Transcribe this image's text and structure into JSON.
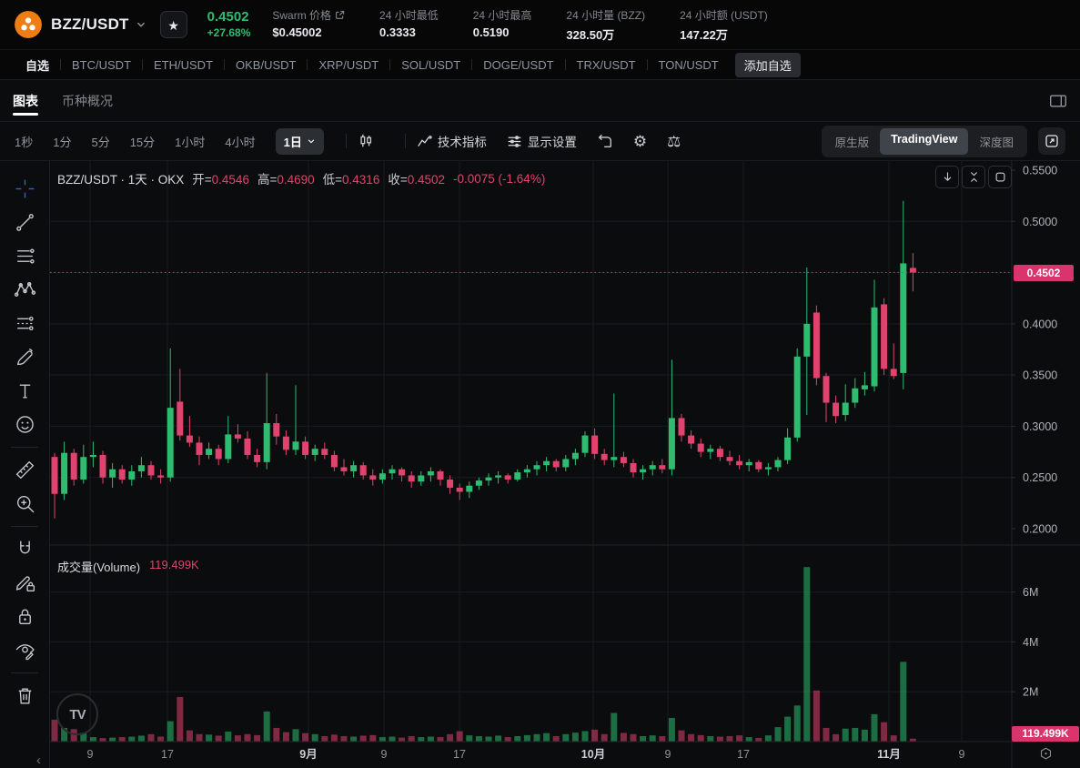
{
  "header": {
    "pair": "BZZ/USDT",
    "price": "0.4502",
    "change": "+27.68%",
    "stats": [
      {
        "label": "Swarm 价格",
        "value": "$0.45002",
        "link": true
      },
      {
        "label": "24 小时最低",
        "value": "0.3333",
        "link": false
      },
      {
        "label": "24 小时最高",
        "value": "0.5190",
        "link": false
      },
      {
        "label": "24 小时量 (BZZ)",
        "value": "328.50万",
        "link": false
      },
      {
        "label": "24 小时额 (USDT)",
        "value": "147.22万",
        "link": false
      }
    ]
  },
  "pairs_bar": {
    "watchlist_label": "自选",
    "items": [
      "BTC/USDT",
      "ETH/USDT",
      "OKB/USDT",
      "XRP/USDT",
      "SOL/USDT",
      "DOGE/USDT",
      "TRX/USDT",
      "TON/USDT"
    ],
    "add_label": "添加自选"
  },
  "view_tabs": [
    {
      "label": "图表",
      "active": true
    },
    {
      "label": "币种概况",
      "active": false
    }
  ],
  "toolbar": {
    "intervals": [
      "1秒",
      "1分",
      "5分",
      "15分",
      "1小时",
      "4小时"
    ],
    "selected_interval": "1日",
    "indicators_label": "技术指标",
    "display_label": "显示设置",
    "gear_glyph": "⚙",
    "scale_glyph": "⚖",
    "right_tabs": [
      "原生版",
      "TradingView",
      "深度图"
    ],
    "right_selected_index": 1
  },
  "left_toolbar": {
    "tools": [
      "crosshair",
      "trend-line",
      "fib-lines",
      "xabcd-pattern",
      "position-tool",
      "brush",
      "text",
      "emoji",
      "divider",
      "ruler",
      "zoom-in",
      "divider",
      "magnet",
      "drawing-mode-lock",
      "lock-all-drawings",
      "hide-drawings",
      "divider",
      "remove-drawings"
    ],
    "collapse_glyph": "‹"
  },
  "chart": {
    "legend": {
      "title": "BZZ/USDT · 1天 · OKX",
      "items": [
        {
          "k": "开=",
          "v": "0.4546"
        },
        {
          "k": "高=",
          "v": "0.4690"
        },
        {
          "k": "低=",
          "v": "0.4316"
        },
        {
          "k": "收=",
          "v": "0.4502"
        }
      ],
      "change": "-0.0075 (-1.64%)"
    },
    "volume_label": "成交量(Volume)",
    "volume_value": "119.499K",
    "price_badge": "0.4502",
    "volume_badge": "119.499K",
    "watermark": "TV"
  },
  "chart_data": {
    "type": "candlestick",
    "title": "BZZ/USDT 1天 OKX",
    "interval": "1日",
    "current_price": 0.4502,
    "last_ohlc": {
      "open": 0.4546,
      "high": 0.469,
      "low": 0.4316,
      "close": 0.4502,
      "change": "-0.0075 (-1.64%)"
    },
    "last_volume": "119.499K",
    "price_axis": {
      "min": 0.2,
      "max": 0.55,
      "ticks": [
        0.55,
        0.5,
        0.4,
        0.35,
        0.3,
        0.25,
        0.2
      ],
      "grid": [
        0.5,
        0.45,
        0.4,
        0.35,
        0.3,
        0.25
      ]
    },
    "volume_axis": {
      "unit": "M",
      "ticks": [
        [
          6,
          "6M"
        ],
        [
          4,
          "4M"
        ],
        [
          2,
          "2M"
        ]
      ]
    },
    "time_ticks": [
      [
        "9",
        99,
        0
      ],
      [
        "17",
        184,
        0
      ],
      [
        "9月",
        339,
        1
      ],
      [
        "9",
        422,
        0
      ],
      [
        "17",
        505,
        0
      ],
      [
        "10月",
        652,
        1
      ],
      [
        "9",
        734,
        0
      ],
      [
        "17",
        817,
        0
      ],
      [
        "11月",
        977,
        1
      ],
      [
        "9",
        1057,
        0
      ]
    ],
    "candles": [
      [
        0.27,
        0.274,
        0.21,
        0.234
      ],
      [
        0.234,
        0.285,
        0.228,
        0.274
      ],
      [
        0.274,
        0.278,
        0.242,
        0.248
      ],
      [
        0.248,
        0.282,
        0.244,
        0.27
      ],
      [
        0.27,
        0.285,
        0.26,
        0.272
      ],
      [
        0.272,
        0.276,
        0.244,
        0.25
      ],
      [
        0.25,
        0.264,
        0.24,
        0.258
      ],
      [
        0.258,
        0.262,
        0.244,
        0.248
      ],
      [
        0.248,
        0.262,
        0.242,
        0.256
      ],
      [
        0.256,
        0.27,
        0.25,
        0.262
      ],
      [
        0.262,
        0.266,
        0.248,
        0.252
      ],
      [
        0.252,
        0.258,
        0.244,
        0.25
      ],
      [
        0.25,
        0.376,
        0.246,
        0.318
      ],
      [
        0.324,
        0.356,
        0.286,
        0.291
      ],
      [
        0.291,
        0.31,
        0.28,
        0.284
      ],
      [
        0.284,
        0.29,
        0.262,
        0.272
      ],
      [
        0.272,
        0.284,
        0.268,
        0.278
      ],
      [
        0.278,
        0.282,
        0.262,
        0.268
      ],
      [
        0.268,
        0.31,
        0.264,
        0.292
      ],
      [
        0.292,
        0.302,
        0.284,
        0.288
      ],
      [
        0.288,
        0.295,
        0.268,
        0.272
      ],
      [
        0.272,
        0.278,
        0.26,
        0.265
      ],
      [
        0.265,
        0.352,
        0.258,
        0.303
      ],
      [
        0.303,
        0.312,
        0.282,
        0.29
      ],
      [
        0.29,
        0.296,
        0.272,
        0.277
      ],
      [
        0.277,
        0.34,
        0.272,
        0.285
      ],
      [
        0.285,
        0.29,
        0.268,
        0.272
      ],
      [
        0.272,
        0.282,
        0.266,
        0.278
      ],
      [
        0.278,
        0.284,
        0.268,
        0.272
      ],
      [
        0.272,
        0.276,
        0.256,
        0.26
      ],
      [
        0.26,
        0.268,
        0.252,
        0.256
      ],
      [
        0.256,
        0.266,
        0.25,
        0.262
      ],
      [
        0.262,
        0.265,
        0.248,
        0.252
      ],
      [
        0.252,
        0.258,
        0.242,
        0.248
      ],
      [
        0.248,
        0.258,
        0.244,
        0.254
      ],
      [
        0.254,
        0.262,
        0.248,
        0.258
      ],
      [
        0.258,
        0.26,
        0.246,
        0.252
      ],
      [
        0.252,
        0.256,
        0.24,
        0.246
      ],
      [
        0.246,
        0.256,
        0.242,
        0.252
      ],
      [
        0.252,
        0.26,
        0.246,
        0.256
      ],
      [
        0.256,
        0.258,
        0.242,
        0.248
      ],
      [
        0.248,
        0.252,
        0.234,
        0.24
      ],
      [
        0.24,
        0.244,
        0.228,
        0.236
      ],
      [
        0.236,
        0.246,
        0.23,
        0.242
      ],
      [
        0.242,
        0.25,
        0.238,
        0.247
      ],
      [
        0.247,
        0.254,
        0.242,
        0.25
      ],
      [
        0.25,
        0.256,
        0.244,
        0.252
      ],
      [
        0.252,
        0.254,
        0.244,
        0.248
      ],
      [
        0.248,
        0.258,
        0.246,
        0.255
      ],
      [
        0.255,
        0.262,
        0.25,
        0.258
      ],
      [
        0.258,
        0.266,
        0.252,
        0.262
      ],
      [
        0.262,
        0.27,
        0.256,
        0.266
      ],
      [
        0.266,
        0.268,
        0.256,
        0.26
      ],
      [
        0.26,
        0.272,
        0.256,
        0.268
      ],
      [
        0.268,
        0.278,
        0.262,
        0.274
      ],
      [
        0.274,
        0.295,
        0.27,
        0.291
      ],
      [
        0.291,
        0.298,
        0.268,
        0.273
      ],
      [
        0.273,
        0.278,
        0.262,
        0.267
      ],
      [
        0.267,
        0.332,
        0.26,
        0.27
      ],
      [
        0.27,
        0.275,
        0.26,
        0.264
      ],
      [
        0.264,
        0.268,
        0.25,
        0.255
      ],
      [
        0.255,
        0.262,
        0.248,
        0.258
      ],
      [
        0.258,
        0.266,
        0.252,
        0.262
      ],
      [
        0.262,
        0.268,
        0.254,
        0.258
      ],
      [
        0.258,
        0.365,
        0.252,
        0.308
      ],
      [
        0.308,
        0.312,
        0.285,
        0.291
      ],
      [
        0.291,
        0.296,
        0.278,
        0.283
      ],
      [
        0.283,
        0.288,
        0.27,
        0.275
      ],
      [
        0.275,
        0.282,
        0.268,
        0.278
      ],
      [
        0.278,
        0.281,
        0.266,
        0.27
      ],
      [
        0.27,
        0.276,
        0.262,
        0.266
      ],
      [
        0.266,
        0.272,
        0.258,
        0.262
      ],
      [
        0.262,
        0.268,
        0.256,
        0.265
      ],
      [
        0.265,
        0.267,
        0.255,
        0.258
      ],
      [
        0.258,
        0.264,
        0.252,
        0.26
      ],
      [
        0.26,
        0.27,
        0.256,
        0.267
      ],
      [
        0.267,
        0.298,
        0.263,
        0.289
      ],
      [
        0.289,
        0.376,
        0.285,
        0.368
      ],
      [
        0.368,
        0.455,
        0.311,
        0.4
      ],
      [
        0.411,
        0.418,
        0.34,
        0.347
      ],
      [
        0.349,
        0.352,
        0.304,
        0.323
      ],
      [
        0.323,
        0.33,
        0.303,
        0.31
      ],
      [
        0.311,
        0.341,
        0.305,
        0.323
      ],
      [
        0.323,
        0.347,
        0.318,
        0.337
      ],
      [
        0.336,
        0.353,
        0.33,
        0.34
      ],
      [
        0.339,
        0.443,
        0.334,
        0.416
      ],
      [
        0.419,
        0.425,
        0.35,
        0.356
      ],
      [
        0.356,
        0.381,
        0.346,
        0.349
      ],
      [
        0.352,
        0.52,
        0.336,
        0.459
      ],
      [
        0.4546,
        0.469,
        0.4316,
        0.4502
      ]
    ],
    "volumes_millions": [
      0.88,
      0.55,
      0.5,
      0.35,
      0.18,
      0.14,
      0.16,
      0.18,
      0.2,
      0.24,
      0.3,
      0.2,
      0.82,
      1.79,
      0.45,
      0.3,
      0.28,
      0.24,
      0.4,
      0.25,
      0.3,
      0.26,
      1.21,
      0.55,
      0.38,
      0.5,
      0.34,
      0.3,
      0.22,
      0.28,
      0.22,
      0.2,
      0.24,
      0.26,
      0.18,
      0.2,
      0.16,
      0.22,
      0.18,
      0.2,
      0.18,
      0.3,
      0.42,
      0.25,
      0.22,
      0.2,
      0.24,
      0.18,
      0.22,
      0.26,
      0.3,
      0.34,
      0.22,
      0.3,
      0.36,
      0.42,
      0.48,
      0.3,
      1.15,
      0.35,
      0.3,
      0.22,
      0.25,
      0.22,
      0.95,
      0.45,
      0.3,
      0.26,
      0.22,
      0.2,
      0.22,
      0.25,
      0.18,
      0.15,
      0.25,
      0.58,
      1.0,
      1.45,
      7.0,
      2.05,
      0.55,
      0.3,
      0.52,
      0.55,
      0.48,
      1.1,
      0.78,
      0.25,
      3.2,
      0.119
    ],
    "colors": {
      "up": "#2EBD70",
      "down": "#E0436E",
      "badge": "#D9346B",
      "grid": "#191B1F",
      "axis_text": "#AEB2BA",
      "time_text": "#8F939C",
      "month_text": "#CDD0D7"
    }
  }
}
